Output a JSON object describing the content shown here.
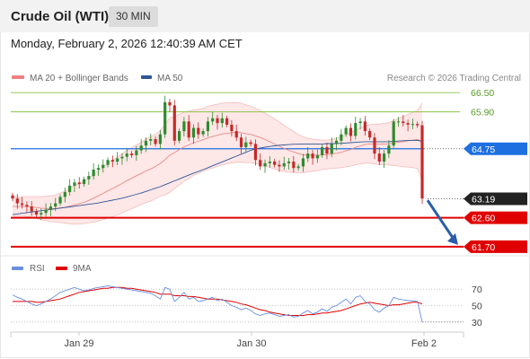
{
  "header": {
    "title": "Crude Oil (WTI)",
    "timeframe": "30 MIN"
  },
  "datetime": "Monday, February 2, 2026 12:40:39 AM CET",
  "legend": {
    "bollinger": {
      "label": "MA 20 + Bollinger Bands",
      "color": "#f08080"
    },
    "ma50": {
      "label": "MA 50",
      "color": "#2f5597"
    }
  },
  "credit": "Research © 2026 Trading Central",
  "colors": {
    "resistance": "#8bc34a",
    "pivot": "#1e6fe0",
    "support": "#e00000",
    "last": "#222222",
    "up": "#2e8b2e",
    "down": "#c62828",
    "arrow": "#2a5da8",
    "rsi": "#6a8fe0",
    "rsi_ma": "#e00000"
  },
  "chart_data": [
    {
      "type": "candlestick",
      "xticks": [
        "Jan 29",
        "Jan 30",
        "Feb 2"
      ],
      "yrange": [
        61.5,
        66.7
      ],
      "levels": [
        {
          "label": "66.50",
          "value": 66.5,
          "kind": "resistance"
        },
        {
          "label": "65.90",
          "value": 65.9,
          "kind": "resistance"
        },
        {
          "label": "64.75",
          "value": 64.75,
          "kind": "pivot"
        },
        {
          "label": "63.19",
          "value": 63.19,
          "kind": "last"
        },
        {
          "label": "62.60",
          "value": 62.6,
          "kind": "support"
        },
        {
          "label": "61.70",
          "value": 61.7,
          "kind": "support"
        }
      ],
      "close": [
        63.2,
        63.05,
        63.0,
        62.95,
        62.8,
        62.7,
        62.75,
        62.85,
        62.95,
        63.05,
        63.25,
        63.4,
        63.6,
        63.7,
        63.65,
        63.8,
        63.9,
        64.1,
        64.15,
        64.25,
        64.4,
        64.35,
        64.45,
        64.5,
        64.6,
        64.55,
        64.7,
        64.85,
        65.0,
        65.05,
        64.9,
        65.2,
        66.2,
        66.1,
        65.0,
        65.3,
        65.6,
        65.1,
        65.4,
        65.2,
        65.3,
        65.6,
        65.7,
        65.55,
        65.7,
        65.5,
        65.3,
        65.1,
        64.8,
        64.95,
        64.9,
        64.4,
        64.2,
        64.3,
        64.35,
        64.25,
        64.2,
        64.3,
        64.35,
        64.15,
        64.2,
        64.45,
        64.6,
        64.45,
        64.55,
        64.8,
        64.6,
        64.9,
        65.0,
        65.2,
        65.4,
        65.15,
        65.55,
        65.6,
        65.3,
        65.1,
        64.6,
        64.35,
        64.6,
        64.85,
        65.6,
        65.6,
        65.55,
        65.5,
        65.52,
        65.48,
        63.2
      ],
      "ma20": [
        62.95,
        62.95,
        62.95,
        62.95,
        62.94,
        62.92,
        62.9,
        62.89,
        62.88,
        62.89,
        62.91,
        62.93,
        62.96,
        63.0,
        63.04,
        63.08,
        63.14,
        63.21,
        63.28,
        63.36,
        63.44,
        63.51,
        63.59,
        63.67,
        63.76,
        63.83,
        63.91,
        63.98,
        64.06,
        64.12,
        64.2,
        64.29,
        64.41,
        64.55,
        64.63,
        64.72,
        64.81,
        64.87,
        64.94,
        64.98,
        65.03,
        65.09,
        65.13,
        65.17,
        65.21,
        65.23,
        65.25,
        65.26,
        65.25,
        65.22,
        65.2,
        65.15,
        65.1,
        65.04,
        64.97,
        64.9,
        64.83,
        64.76,
        64.7,
        64.65,
        64.6,
        64.56,
        64.55,
        64.55,
        64.55,
        64.56,
        64.57,
        64.59,
        64.61,
        64.64,
        64.69,
        64.73,
        64.79,
        64.84,
        64.88,
        64.9,
        64.9,
        64.89,
        64.9,
        64.9,
        64.93,
        64.95,
        64.97,
        65.0,
        65.02,
        65.04,
        64.97
      ],
      "ma50": [
        62.7,
        62.72,
        62.74,
        62.76,
        62.78,
        62.8,
        62.82,
        62.84,
        62.86,
        62.88,
        62.9,
        62.92,
        62.94,
        62.96,
        62.98,
        63.0,
        63.02,
        63.04,
        63.06,
        63.09,
        63.12,
        63.15,
        63.18,
        63.21,
        63.25,
        63.29,
        63.33,
        63.37,
        63.42,
        63.47,
        63.52,
        63.57,
        63.63,
        63.69,
        63.75,
        63.81,
        63.87,
        63.93,
        63.99,
        64.04,
        64.1,
        64.16,
        64.22,
        64.28,
        64.34,
        64.4,
        64.46,
        64.52,
        64.58,
        64.64,
        64.7,
        64.74,
        64.77,
        64.8,
        64.82,
        64.84,
        64.86,
        64.87,
        64.88,
        64.89,
        64.89,
        64.9,
        64.9,
        64.9,
        64.9,
        64.9,
        64.91,
        64.91,
        64.91,
        64.92,
        64.93,
        64.94,
        64.95,
        64.96,
        64.97,
        64.97,
        64.97,
        64.97,
        64.97,
        64.97,
        64.98,
        64.99,
        65.0,
        65.01,
        65.01,
        65.01,
        64.98
      ],
      "band_width": [
        0.3,
        0.3,
        0.3,
        0.31,
        0.32,
        0.34,
        0.36,
        0.38,
        0.4,
        0.42,
        0.46,
        0.5,
        0.55,
        0.6,
        0.63,
        0.66,
        0.7,
        0.74,
        0.78,
        0.82,
        0.85,
        0.88,
        0.9,
        0.92,
        0.94,
        0.95,
        0.96,
        0.97,
        0.99,
        1.0,
        1.0,
        1.02,
        1.1,
        1.16,
        1.12,
        1.1,
        1.08,
        1.05,
        1.02,
        1.0,
        0.98,
        0.98,
        0.98,
        0.97,
        0.96,
        0.95,
        0.94,
        0.93,
        0.92,
        0.9,
        0.88,
        0.86,
        0.84,
        0.82,
        0.8,
        0.78,
        0.76,
        0.72,
        0.68,
        0.64,
        0.6,
        0.56,
        0.52,
        0.5,
        0.48,
        0.46,
        0.45,
        0.45,
        0.46,
        0.48,
        0.5,
        0.52,
        0.54,
        0.56,
        0.58,
        0.6,
        0.62,
        0.63,
        0.64,
        0.66,
        0.7,
        0.74,
        0.78,
        0.82,
        0.86,
        0.9,
        1.2
      ]
    },
    {
      "type": "line",
      "legend": [
        {
          "name": "RSI",
          "color": "#6a8fe0"
        },
        {
          "name": "9MA",
          "color": "#e00000"
        }
      ],
      "yticks": [
        70,
        50,
        30
      ],
      "yrange": [
        20,
        80
      ],
      "rsi": [
        63,
        60,
        58,
        55,
        52,
        50,
        52,
        55,
        58,
        62,
        66,
        68,
        70,
        72,
        70,
        68,
        69,
        71,
        72,
        73,
        74,
        73,
        72,
        71,
        70,
        69,
        68,
        67,
        66,
        65,
        62,
        58,
        72,
        70,
        55,
        60,
        66,
        58,
        60,
        55,
        56,
        58,
        60,
        56,
        58,
        54,
        50,
        48,
        45,
        47,
        44,
        40,
        38,
        40,
        41,
        39,
        37,
        38,
        39,
        36,
        37,
        41,
        44,
        40,
        42,
        46,
        43,
        48,
        50,
        54,
        58,
        52,
        60,
        62,
        55,
        52,
        45,
        42,
        47,
        50,
        60,
        58,
        57,
        56,
        56,
        55,
        30
      ],
      "rsi_ma": [
        55,
        55,
        55,
        55,
        55,
        54,
        54,
        55,
        56,
        57,
        58,
        60,
        62,
        64,
        66,
        67,
        68,
        69,
        70,
        71,
        71,
        72,
        72,
        72,
        71,
        71,
        70,
        69,
        68,
        67,
        66,
        64,
        64,
        64,
        62,
        62,
        62,
        61,
        61,
        60,
        59,
        58,
        58,
        58,
        57,
        56,
        55,
        54,
        52,
        51,
        49,
        47,
        45,
        44,
        42,
        41,
        40,
        39,
        38,
        38,
        38,
        38,
        39,
        39,
        40,
        41,
        41,
        42,
        43,
        44,
        46,
        48,
        50,
        52,
        53,
        54,
        53,
        52,
        51,
        50,
        51,
        51,
        52,
        53,
        54,
        54,
        52
      ]
    }
  ]
}
